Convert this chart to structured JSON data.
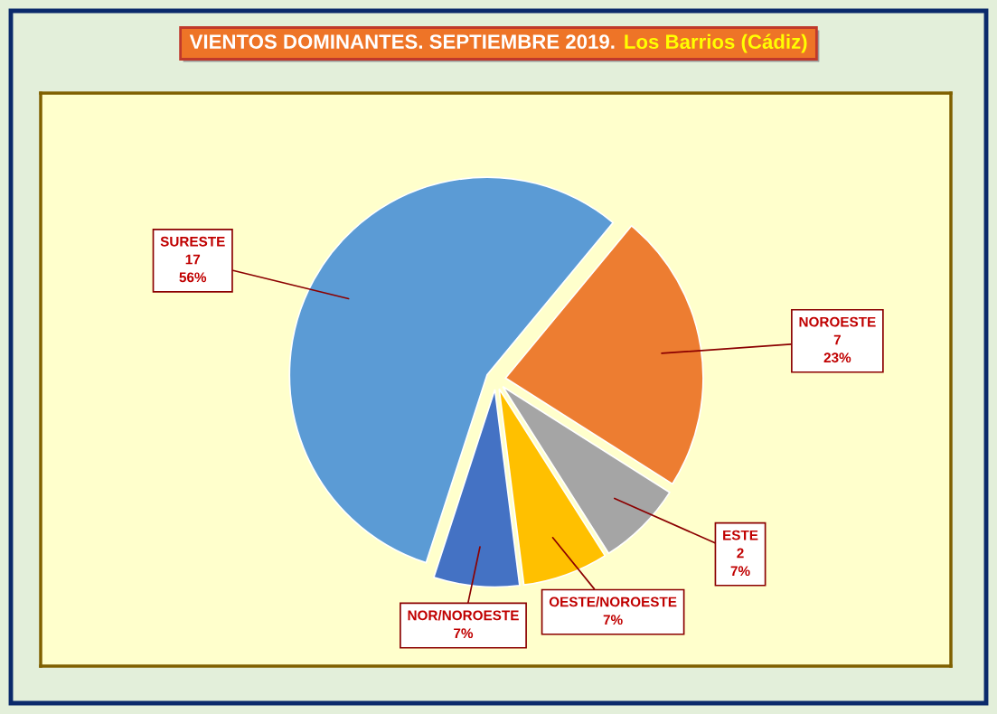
{
  "chart_data": {
    "type": "pie",
    "title": "VIENTOS DOMINANTES. SEPTIEMBRE 2019.",
    "subtitle": "Los Barrios (Cádiz)",
    "categories": [
      "SURESTE",
      "NOROESTE",
      "ESTE",
      "OESTE/NOROESTE",
      "NOR/NOROESTE"
    ],
    "values": [
      56,
      23,
      7,
      7,
      7
    ],
    "value_labels": [
      "17\n56%",
      "7\n23%",
      "2\n7%",
      "7%",
      "7%"
    ],
    "colors": [
      "#5b9bd5",
      "#ed7d31",
      "#a5a5a5",
      "#ffc000",
      "#4472c4"
    ]
  }
}
